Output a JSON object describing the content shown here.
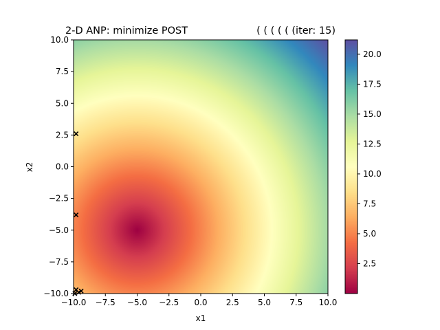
{
  "chart_data": {
    "type": "heatmap",
    "title_left": "2-D ANP: minimize POST",
    "title_right": "( ( ( ( ( (iter: 15)",
    "xlabel": "x1",
    "ylabel": "x2",
    "xlim": [
      -10,
      10
    ],
    "ylim": [
      -10,
      10
    ],
    "x_ticks": [
      -10.0,
      -7.5,
      -5.0,
      -2.5,
      0.0,
      2.5,
      5.0,
      7.5,
      10.0
    ],
    "x_tick_labels": [
      "−10.0",
      "−7.5",
      "−5.0",
      "−2.5",
      "0.0",
      "2.5",
      "5.0",
      "7.5",
      "10.0"
    ],
    "y_ticks": [
      -10.0,
      -7.5,
      -5.0,
      -2.5,
      0.0,
      2.5,
      5.0,
      7.5,
      10.0
    ],
    "y_tick_labels": [
      "−10.0",
      "−7.5",
      "−5.0",
      "−2.5",
      "0.0",
      "2.5",
      "5.0",
      "7.5",
      "10.0"
    ],
    "colormap": "Spectral",
    "color_range": [
      0.0,
      21.2
    ],
    "colorbar_ticks": [
      2.5,
      5.0,
      7.5,
      10.0,
      12.5,
      15.0,
      17.5,
      20.0
    ],
    "colorbar_tick_labels": [
      "2.5",
      "5.0",
      "7.5",
      "10.0",
      "12.5",
      "15.0",
      "17.5",
      "20.0"
    ],
    "surface": {
      "description_of_field": "distance from minimum",
      "minimum_at": [
        -5.0,
        -5.0
      ]
    },
    "markers": {
      "symbol": "x",
      "color": "#000000",
      "points": [
        {
          "x": -9.8,
          "y": 2.6
        },
        {
          "x": -9.8,
          "y": -3.8
        },
        {
          "x": -9.8,
          "y": -9.7
        },
        {
          "x": -9.6,
          "y": -9.9
        },
        {
          "x": -9.4,
          "y": -9.8
        },
        {
          "x": -9.9,
          "y": -10.0
        }
      ]
    }
  }
}
